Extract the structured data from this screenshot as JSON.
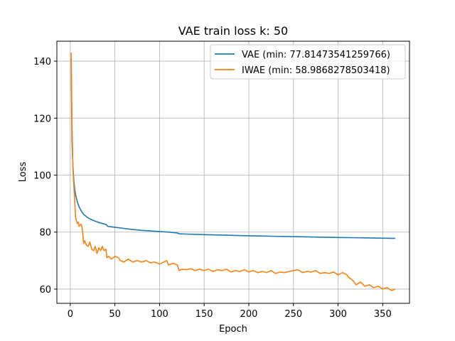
{
  "chart_data": {
    "type": "line",
    "title": "VAE train loss k: 50",
    "xlabel": "Epoch",
    "ylabel": "Loss",
    "xlim": [
      -15,
      380
    ],
    "ylim": [
      55,
      147
    ],
    "xticks": [
      0,
      50,
      100,
      150,
      200,
      250,
      300,
      350
    ],
    "yticks": [
      60,
      80,
      100,
      120,
      140
    ],
    "grid": true,
    "legend_position": "upper right",
    "series": [
      {
        "name": "VAE (min: 77.81473541259766)",
        "color": "#1f77b4",
        "x": [
          1,
          2,
          3,
          4,
          5,
          6,
          8,
          10,
          12,
          15,
          20,
          25,
          30,
          35,
          40,
          42,
          50,
          60,
          70,
          80,
          90,
          100,
          110,
          120,
          122,
          130,
          150,
          175,
          200,
          250,
          300,
          330,
          364
        ],
        "y": [
          141,
          112,
          103,
          98,
          95,
          93,
          90.5,
          88.8,
          87.6,
          86.2,
          85,
          84.2,
          83.6,
          83.1,
          82.7,
          82,
          81.7,
          81.3,
          80.9,
          80.6,
          80.4,
          80.2,
          80,
          79.7,
          79.4,
          79.3,
          79.1,
          78.9,
          78.7,
          78.4,
          78.1,
          78,
          77.8
        ]
      },
      {
        "name": "IWAE (min: 58.9868278503418)",
        "color": "#ff7f0e",
        "x": [
          1,
          2,
          3,
          4,
          5,
          6,
          7,
          8,
          9,
          10,
          11,
          12,
          13,
          14,
          15,
          16,
          18,
          20,
          22,
          24,
          26,
          28,
          30,
          32,
          34,
          36,
          38,
          40,
          41,
          43,
          46,
          50,
          54,
          56,
          60,
          65,
          70,
          75,
          80,
          85,
          90,
          95,
          100,
          105,
          108,
          110,
          115,
          120,
          122,
          125,
          130,
          135,
          140,
          145,
          150,
          155,
          160,
          165,
          170,
          175,
          180,
          185,
          190,
          195,
          200,
          205,
          210,
          215,
          220,
          225,
          230,
          235,
          240,
          245,
          250,
          255,
          260,
          265,
          270,
          275,
          280,
          285,
          290,
          295,
          300,
          305,
          310,
          312,
          315,
          318,
          320,
          325,
          330,
          335,
          340,
          345,
          350,
          355,
          360,
          364
        ],
        "y": [
          143,
          118,
          102,
          96,
          91,
          85,
          84,
          83,
          83.5,
          82,
          82.5,
          82.8,
          82,
          79.5,
          76,
          77,
          75.5,
          75,
          76.5,
          74,
          73.5,
          75,
          72.5,
          74.5,
          73.5,
          75,
          73.5,
          74,
          71,
          71.5,
          70.5,
          71.5,
          71,
          70,
          69.5,
          70.5,
          69.5,
          70,
          69.5,
          70,
          69.2,
          69.5,
          68.8,
          69.5,
          70,
          68.5,
          69,
          68.5,
          66.5,
          67,
          66.8,
          67.2,
          66.5,
          67,
          66.5,
          67,
          66.2,
          66.8,
          66.5,
          67,
          66,
          66.5,
          66.2,
          66.8,
          66,
          66.5,
          65.8,
          66.2,
          65.8,
          66.5,
          65.5,
          66,
          65.8,
          66.2,
          66.5,
          66.8,
          65.8,
          66.2,
          66,
          66.5,
          65.5,
          65.8,
          65.5,
          66,
          65,
          65.8,
          65,
          64,
          63.5,
          62.5,
          61.5,
          62.5,
          61,
          61.5,
          60.5,
          61,
          60,
          60.5,
          59.5,
          60
        ]
      }
    ]
  }
}
